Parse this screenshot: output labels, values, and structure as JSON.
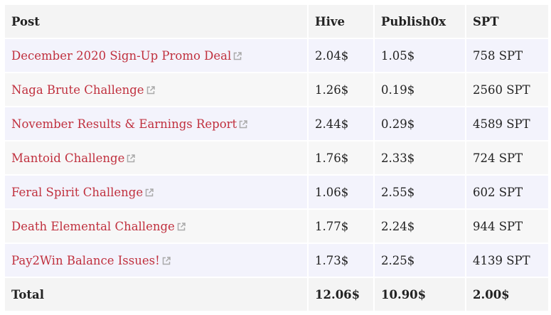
{
  "table": {
    "header": [
      "Post",
      "Hive",
      "Publish0x",
      "SPT"
    ],
    "rows": [
      [
        "December 2020 Sign-Up Promo Deal",
        "2.04$",
        "1.05$",
        "758 SPT"
      ],
      [
        "Naga Brute Challenge",
        "1.26$",
        "0.19$",
        "2560 SPT"
      ],
      [
        "November Results & Earnings Report",
        "2.44$",
        "0.29$",
        "4589 SPT"
      ],
      [
        "Mantoid Challenge",
        "1.76$",
        "2.33$",
        "724 SPT"
      ],
      [
        "Feral Spirit Challenge",
        "1.06$",
        "2.55$",
        "602 SPT"
      ],
      [
        "Death Elemental Challenge",
        "1.77$",
        "2.24$",
        "944 SPT"
      ],
      [
        "Pay2Win Balance Issues!",
        "1.73$",
        "2.25$",
        "4139 SPT"
      ]
    ],
    "total": [
      "Total",
      "12.06$",
      "10.90$",
      "2.00$"
    ]
  }
}
